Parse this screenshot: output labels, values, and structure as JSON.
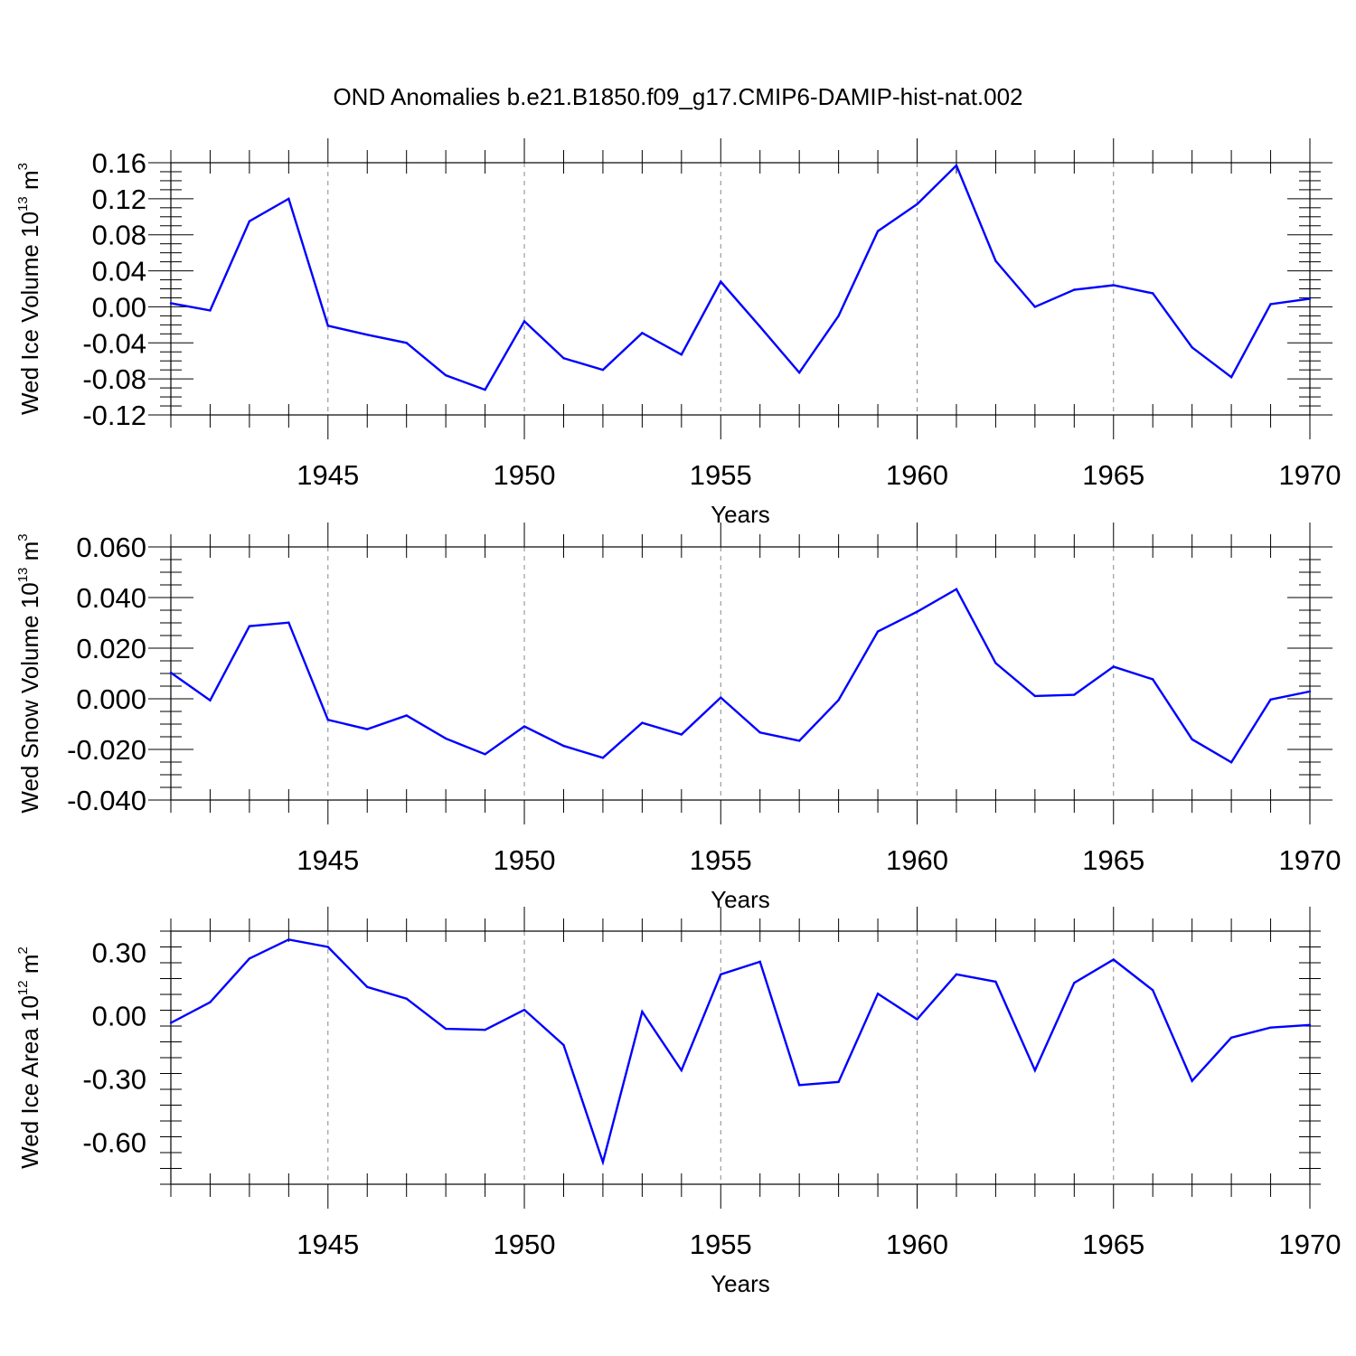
{
  "title": "OND Anomalies b.e21.B1850.f09_g17.CMIP6-DAMIP-hist-nat.002",
  "colors": {
    "line": "#0000ff",
    "axis": "#000000",
    "grid": "#888888"
  },
  "chart_data": [
    {
      "type": "line",
      "ylabel": {
        "text": "Wed Ice Volume 10",
        "exp": "13",
        "unit": " m",
        "unit_exp": "3"
      },
      "xlabel": "Years",
      "xlim": [
        1941,
        1970
      ],
      "ylim": [
        -0.12,
        0.16
      ],
      "yticks": [
        -0.12,
        -0.08,
        -0.04,
        0.0,
        0.04,
        0.08,
        0.12,
        0.16
      ],
      "ytick_labels": [
        "-0.12",
        "-0.08",
        "-0.04",
        "0.00",
        "0.04",
        "0.08",
        "0.12",
        "0.16"
      ],
      "xticks": [
        1945,
        1950,
        1955,
        1960,
        1965,
        1970
      ],
      "xtick_labels": [
        "1945",
        "1950",
        "1955",
        "1960",
        "1965",
        "1970"
      ],
      "grid": "vertical dashed at major x ticks",
      "x": [
        1941,
        1942,
        1943,
        1944,
        1945,
        1946,
        1947,
        1948,
        1949,
        1950,
        1951,
        1952,
        1953,
        1954,
        1955,
        1956,
        1957,
        1958,
        1959,
        1960,
        1961,
        1962,
        1963,
        1964,
        1965,
        1966,
        1967,
        1968,
        1969,
        1970
      ],
      "values": [
        0.004,
        -0.004,
        0.095,
        0.12,
        -0.021,
        -0.031,
        -0.04,
        -0.076,
        -0.092,
        -0.016,
        -0.057,
        -0.07,
        -0.029,
        -0.053,
        0.028,
        -0.022,
        -0.073,
        -0.01,
        0.084,
        0.114,
        0.157,
        0.051,
        0.0,
        0.019,
        0.024,
        0.015,
        -0.045,
        -0.078,
        0.003,
        0.009
      ]
    },
    {
      "type": "line",
      "ylabel": {
        "text": "Wed Snow Volume 10",
        "exp": "13",
        "unit": " m",
        "unit_exp": "3"
      },
      "xlabel": "Years",
      "xlim": [
        1941,
        1970
      ],
      "ylim": [
        -0.04,
        0.06
      ],
      "yticks": [
        -0.04,
        -0.02,
        0.0,
        0.02,
        0.04,
        0.06
      ],
      "ytick_labels": [
        "-0.040",
        "-0.020",
        "0.000",
        "0.020",
        "0.040",
        "0.060"
      ],
      "xticks": [
        1945,
        1950,
        1955,
        1960,
        1965,
        1970
      ],
      "xtick_labels": [
        "1945",
        "1950",
        "1955",
        "1960",
        "1965",
        "1970"
      ],
      "grid": "vertical dashed at major x ticks",
      "x": [
        1941,
        1942,
        1943,
        1944,
        1945,
        1946,
        1947,
        1948,
        1949,
        1950,
        1951,
        1952,
        1953,
        1954,
        1955,
        1956,
        1957,
        1958,
        1959,
        1960,
        1961,
        1962,
        1963,
        1964,
        1965,
        1966,
        1967,
        1968,
        1969,
        1970
      ],
      "values": [
        0.0103,
        -0.0006,
        0.0287,
        0.0301,
        -0.0083,
        -0.012,
        -0.0066,
        -0.0157,
        -0.0219,
        -0.0109,
        -0.0186,
        -0.0233,
        -0.0095,
        -0.0141,
        0.0005,
        -0.0133,
        -0.0166,
        -0.0005,
        0.0266,
        0.0344,
        0.0433,
        0.0141,
        0.0011,
        0.0016,
        0.0127,
        0.0077,
        -0.016,
        -0.0251,
        -0.0003,
        0.0029
      ]
    },
    {
      "type": "line",
      "ylabel": {
        "text": "Wed Ice Area 10",
        "exp": "12",
        "unit": " m",
        "unit_exp": "2"
      },
      "xlabel": "Years",
      "xlim": [
        1941,
        1970
      ],
      "ylim": [
        -0.8,
        0.4
      ],
      "yticks": [
        -0.6,
        -0.3,
        0.0,
        0.3
      ],
      "ytick_labels": [
        "-0.60",
        "-0.30",
        "0.00",
        "0.30"
      ],
      "xticks": [
        1945,
        1950,
        1955,
        1960,
        1965,
        1970
      ],
      "xtick_labels": [
        "1945",
        "1950",
        "1955",
        "1960",
        "1965",
        "1970"
      ],
      "grid": "vertical dashed at major x ticks",
      "x": [
        1941,
        1942,
        1943,
        1944,
        1945,
        1946,
        1947,
        1948,
        1949,
        1950,
        1951,
        1952,
        1953,
        1954,
        1955,
        1956,
        1957,
        1958,
        1959,
        1960,
        1961,
        1962,
        1963,
        1964,
        1965,
        1966,
        1967,
        1968,
        1969,
        1970
      ],
      "values": [
        -0.035,
        0.063,
        0.27,
        0.36,
        0.325,
        0.135,
        0.08,
        -0.063,
        -0.068,
        0.027,
        -0.14,
        -0.695,
        0.018,
        -0.26,
        0.195,
        0.255,
        -0.33,
        -0.315,
        0.103,
        -0.018,
        0.195,
        0.16,
        -0.26,
        0.155,
        0.265,
        0.12,
        -0.31,
        -0.105,
        -0.057,
        -0.045
      ]
    }
  ]
}
